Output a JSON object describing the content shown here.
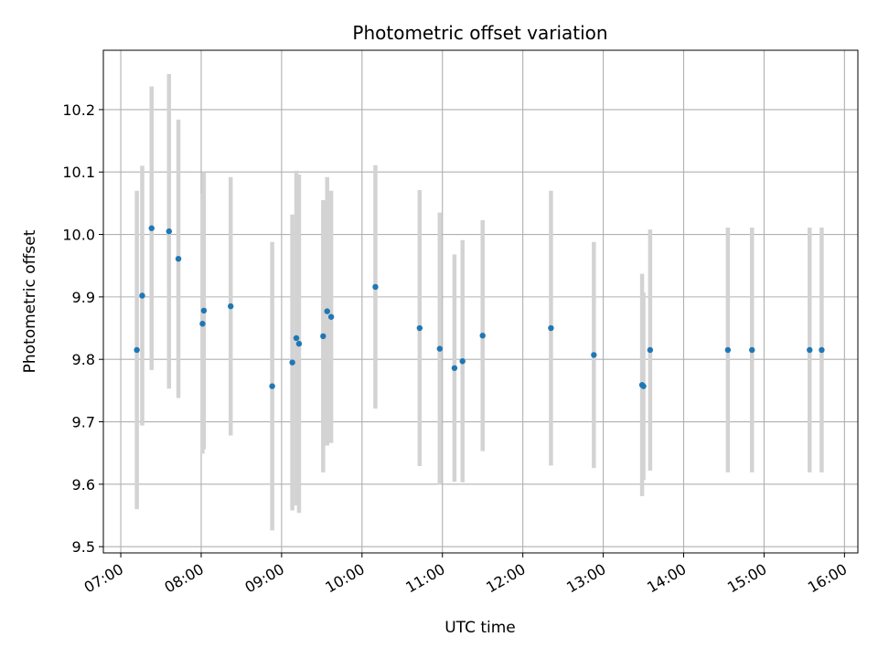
{
  "chart_data": {
    "type": "scatter",
    "title": "Photometric offset variation",
    "xlabel": "UTC time",
    "ylabel": "Photometric offset",
    "xlim": [
      "06:47",
      "16:10"
    ],
    "ylim": [
      9.49,
      10.295
    ],
    "x_ticks": [
      "07:00",
      "08:00",
      "09:00",
      "10:00",
      "11:00",
      "12:00",
      "13:00",
      "14:00",
      "15:00",
      "16:00"
    ],
    "y_ticks": [
      "9.5",
      "9.6",
      "9.7",
      "9.8",
      "9.9",
      "10.0",
      "10.1",
      "10.2"
    ],
    "grid": true,
    "points": [
      {
        "t": "07:12",
        "y": 9.815,
        "err": 0.255
      },
      {
        "t": "07:16",
        "y": 9.902,
        "err": 0.208
      },
      {
        "t": "07:23",
        "y": 10.01,
        "err": 0.227
      },
      {
        "t": "07:36",
        "y": 10.005,
        "err": 0.252
      },
      {
        "t": "07:43",
        "y": 9.961,
        "err": 0.223
      },
      {
        "t": "08:01",
        "y": 9.857,
        "err": 0.208
      },
      {
        "t": "08:02",
        "y": 9.878,
        "err": 0.222
      },
      {
        "t": "08:22",
        "y": 9.885,
        "err": 0.207
      },
      {
        "t": "08:53",
        "y": 9.757,
        "err": 0.231
      },
      {
        "t": "09:08",
        "y": 9.795,
        "err": 0.237
      },
      {
        "t": "09:11",
        "y": 9.834,
        "err": 0.268
      },
      {
        "t": "09:13",
        "y": 9.825,
        "err": 0.271
      },
      {
        "t": "09:31",
        "y": 9.837,
        "err": 0.218
      },
      {
        "t": "09:34",
        "y": 9.877,
        "err": 0.215
      },
      {
        "t": "09:37",
        "y": 9.868,
        "err": 0.202
      },
      {
        "t": "10:10",
        "y": 9.916,
        "err": 0.195
      },
      {
        "t": "10:43",
        "y": 9.85,
        "err": 0.221
      },
      {
        "t": "10:58",
        "y": 9.817,
        "err": 0.218
      },
      {
        "t": "11:09",
        "y": 9.786,
        "err": 0.182
      },
      {
        "t": "11:15",
        "y": 9.797,
        "err": 0.194
      },
      {
        "t": "11:30",
        "y": 9.838,
        "err": 0.185
      },
      {
        "t": "12:21",
        "y": 9.85,
        "err": 0.22
      },
      {
        "t": "12:53",
        "y": 9.807,
        "err": 0.181
      },
      {
        "t": "13:29",
        "y": 9.759,
        "err": 0.178
      },
      {
        "t": "13:30",
        "y": 9.757,
        "err": 0.15
      },
      {
        "t": "13:35",
        "y": 9.815,
        "err": 0.193
      },
      {
        "t": "14:33",
        "y": 9.815,
        "err": 0.196
      },
      {
        "t": "14:51",
        "y": 9.815,
        "err": 0.196
      },
      {
        "t": "15:34",
        "y": 9.815,
        "err": 0.196
      },
      {
        "t": "15:43",
        "y": 9.815,
        "err": 0.196
      }
    ],
    "colors": {
      "point": "#1f77b4",
      "errorbar": "#d3d3d3",
      "grid": "#b0b0b0",
      "axes": "#000000"
    }
  }
}
